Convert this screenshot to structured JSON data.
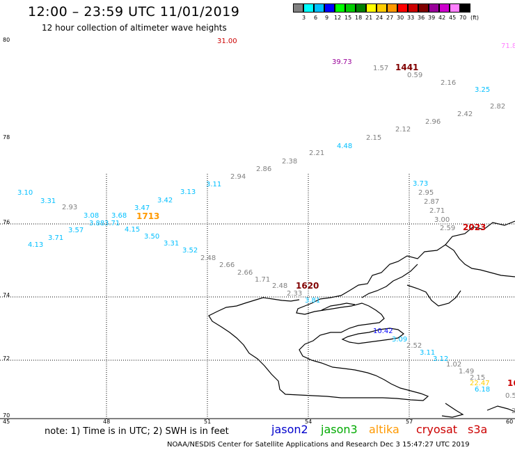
{
  "header": {
    "title": "12:00 – 23:59 UTC 11/01/2019",
    "subtitle": "12 hour collection of altimeter wave heights"
  },
  "legend": {
    "unit": "(ft)",
    "entries": [
      {
        "label": "3",
        "color": "#808080"
      },
      {
        "label": "6",
        "color": "#00ffff"
      },
      {
        "label": "9",
        "color": "#00bfff"
      },
      {
        "label": "12",
        "color": "#0000ff"
      },
      {
        "label": "15",
        "color": "#00ff00"
      },
      {
        "label": "18",
        "color": "#00cc00"
      },
      {
        "label": "21",
        "color": "#008000"
      },
      {
        "label": "24",
        "color": "#ffff00"
      },
      {
        "label": "27",
        "color": "#ffcc00"
      },
      {
        "label": "30",
        "color": "#ff9900"
      },
      {
        "label": "33",
        "color": "#ff0000"
      },
      {
        "label": "36",
        "color": "#cc0000"
      },
      {
        "label": "39",
        "color": "#800000"
      },
      {
        "label": "42",
        "color": "#990099"
      },
      {
        "label": "45",
        "color": "#cc00cc"
      },
      {
        "label": "70",
        "color": "#ff80ff"
      },
      {
        "label": "",
        "color": "#000000"
      }
    ]
  },
  "axes": {
    "lat_labels": [
      "80",
      "78",
      "76",
      "74",
      "72",
      "70"
    ],
    "lon_labels": [
      "45",
      "48",
      "51",
      "54",
      "57",
      "60"
    ]
  },
  "observations": [
    {
      "v": "31.00",
      "c": "#cc0000"
    },
    {
      "v": "71.8",
      "c": "#ff80ff"
    },
    {
      "v": "39.73",
      "c": "#990099"
    },
    {
      "v": "1.57",
      "c": "#808080"
    },
    {
      "v": "0.59",
      "c": "#808080"
    },
    {
      "v": "2.16",
      "c": "#808080"
    },
    {
      "v": "3.25",
      "c": "#00bfff"
    },
    {
      "v": "2.82",
      "c": "#808080"
    },
    {
      "v": "2.42",
      "c": "#808080"
    },
    {
      "v": "2.96",
      "c": "#808080"
    },
    {
      "v": "2.12",
      "c": "#808080"
    },
    {
      "v": "2.15",
      "c": "#808080"
    },
    {
      "v": "4.48",
      "c": "#00bfff"
    },
    {
      "v": "2.21",
      "c": "#808080"
    },
    {
      "v": "2.38",
      "c": "#808080"
    },
    {
      "v": "2.86",
      "c": "#808080"
    },
    {
      "v": "2.94",
      "c": "#808080"
    },
    {
      "v": "3.11",
      "c": "#00bfff"
    },
    {
      "v": "3.13",
      "c": "#00bfff"
    },
    {
      "v": "3.42",
      "c": "#00bfff"
    },
    {
      "v": "3.47",
      "c": "#00bfff"
    },
    {
      "v": "3.68",
      "c": "#00bfff"
    },
    {
      "v": "3.08",
      "c": "#00bfff"
    },
    {
      "v": "2.93",
      "c": "#808080"
    },
    {
      "v": "3.31",
      "c": "#00bfff"
    },
    {
      "v": "3.10",
      "c": "#00bfff"
    },
    {
      "v": "3.88",
      "c": "#00bfff"
    },
    {
      "v": "3.71",
      "c": "#00bfff"
    },
    {
      "v": "4.15",
      "c": "#00bfff"
    },
    {
      "v": "3.57",
      "c": "#00bfff"
    },
    {
      "v": "3.71",
      "c": "#00bfff"
    },
    {
      "v": "4.13",
      "c": "#00bfff"
    },
    {
      "v": "3.50",
      "c": "#00bfff"
    },
    {
      "v": "3.31",
      "c": "#00bfff"
    },
    {
      "v": "3.52",
      "c": "#00bfff"
    },
    {
      "v": "2.48",
      "c": "#808080"
    },
    {
      "v": "2.66",
      "c": "#808080"
    },
    {
      "v": "2.66",
      "c": "#808080"
    },
    {
      "v": "1.71",
      "c": "#808080"
    },
    {
      "v": "2.48",
      "c": "#808080"
    },
    {
      "v": "2.33",
      "c": "#808080"
    },
    {
      "v": "3.81",
      "c": "#00bfff"
    },
    {
      "v": "3.73",
      "c": "#00bfff"
    },
    {
      "v": "2.95",
      "c": "#808080"
    },
    {
      "v": "2.87",
      "c": "#808080"
    },
    {
      "v": "2.71",
      "c": "#808080"
    },
    {
      "v": "3.00",
      "c": "#808080"
    },
    {
      "v": "2.59",
      "c": "#808080"
    },
    {
      "v": "10.42",
      "c": "#0000ff"
    },
    {
      "v": "3.09",
      "c": "#00bfff"
    },
    {
      "v": "2.52",
      "c": "#808080"
    },
    {
      "v": "3.11",
      "c": "#00bfff"
    },
    {
      "v": "3.12",
      "c": "#00bfff"
    },
    {
      "v": "1.02",
      "c": "#808080"
    },
    {
      "v": "1.49",
      "c": "#808080"
    },
    {
      "v": "2.15",
      "c": "#808080"
    },
    {
      "v": "22.47",
      "c": "#ffcc00"
    },
    {
      "v": "6.18",
      "c": "#00bfff"
    },
    {
      "v": "0.5",
      "c": "#808080"
    },
    {
      "v": "2",
      "c": "#808080"
    }
  ],
  "times": [
    {
      "v": "1441",
      "c": "#800000"
    },
    {
      "v": "1713",
      "c": "#ff9900"
    },
    {
      "v": "2023",
      "c": "#cc0000"
    },
    {
      "v": "1620",
      "c": "#800000"
    },
    {
      "v": "16",
      "c": "#cc0000"
    }
  ],
  "footer": {
    "note": "note:  1) Time is in UTC;  2) SWH is in feet",
    "satellites": [
      {
        "name": "jason2",
        "color": "#0000cc"
      },
      {
        "name": "jason3",
        "color": "#00aa00"
      },
      {
        "name": "altika",
        "color": "#ff9900"
      },
      {
        "name": "cryosat",
        "color": "#cc0000"
      },
      {
        "name": "s3a",
        "color": "#cc0000"
      }
    ],
    "credit": "NOAA/NESDIS Center for Satellite Applications and Research    Dec  3 15:47:27 UTC 2019"
  }
}
